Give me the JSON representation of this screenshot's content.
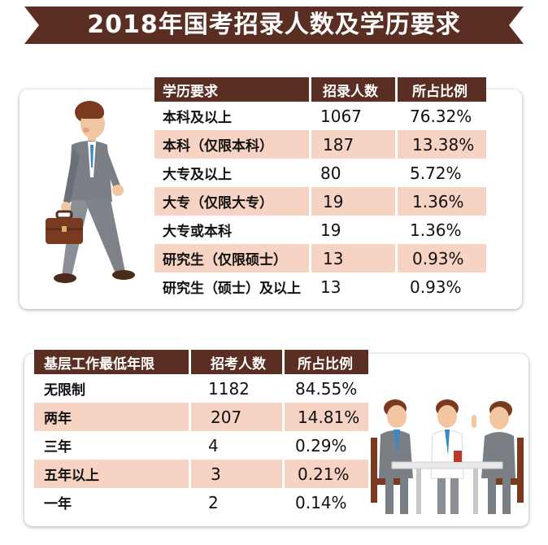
{
  "title": "2018年国考招录人数及学历要求",
  "table1": {
    "headers": [
      "学历要求",
      "招录人数",
      "所占比例"
    ],
    "rows": [
      [
        "本科及以上",
        "1067",
        "76.32%"
      ],
      [
        "本科（仅限本科）",
        "187",
        "13.38%"
      ],
      [
        "大专及以上",
        "80",
        "5.72%"
      ],
      [
        "大专（仅限大专）",
        "19",
        "1.36%"
      ],
      [
        "大专或本科",
        "19",
        "1.36%"
      ],
      [
        "研究生（仅限硕士）",
        "13",
        "0.93%"
      ],
      [
        "研究生（硕士）及以上",
        "13",
        "0.93%"
      ]
    ]
  },
  "table2": {
    "headers": [
      "基层工作最低年限",
      "招考人数",
      "所占比例"
    ],
    "rows": [
      [
        "无限制",
        "1182",
        "84.55%"
      ],
      [
        "两年",
        "207",
        "14.81%"
      ],
      [
        "三年",
        "4",
        "0.29%"
      ],
      [
        "五年以上",
        "3",
        "0.21%"
      ],
      [
        "一年",
        "2",
        "0.14%"
      ]
    ]
  },
  "colors": {
    "banner": "#5a2e22",
    "header": "#5a2e22",
    "alt_row": "#f6d3c3"
  },
  "icons": [
    "businessman-walking-icon",
    "briefcase-icon",
    "meeting-people-icon"
  ]
}
